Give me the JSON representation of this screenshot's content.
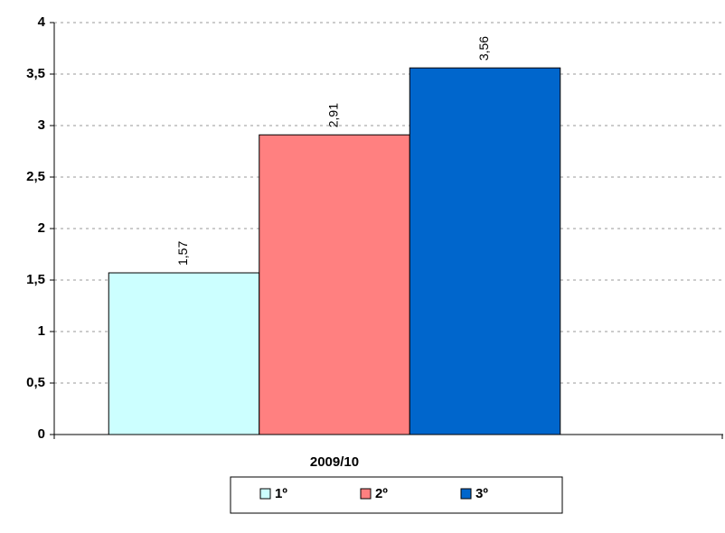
{
  "chart_data": {
    "type": "bar",
    "categories": [
      "2009/10"
    ],
    "series": [
      {
        "name": "1º",
        "color": "#ccffff",
        "values": [
          1.57
        ],
        "value_labels": [
          "1,57"
        ]
      },
      {
        "name": "2º",
        "color": "#ff8080",
        "values": [
          2.91
        ],
        "value_labels": [
          "2,91"
        ]
      },
      {
        "name": "3º",
        "color": "#0066cc",
        "values": [
          3.56
        ],
        "value_labels": [
          "3,56"
        ]
      }
    ],
    "ylim": [
      0,
      4
    ],
    "yticks": [
      0,
      {
        "value": 0.5,
        "label": "0,5"
      },
      1,
      {
        "value": 1.5,
        "label": "1,5"
      },
      2,
      {
        "value": 2.5,
        "label": "2,5"
      },
      3,
      {
        "value": 3.5,
        "label": "3,5"
      },
      4
    ],
    "grid": true,
    "legend": "bottom"
  }
}
